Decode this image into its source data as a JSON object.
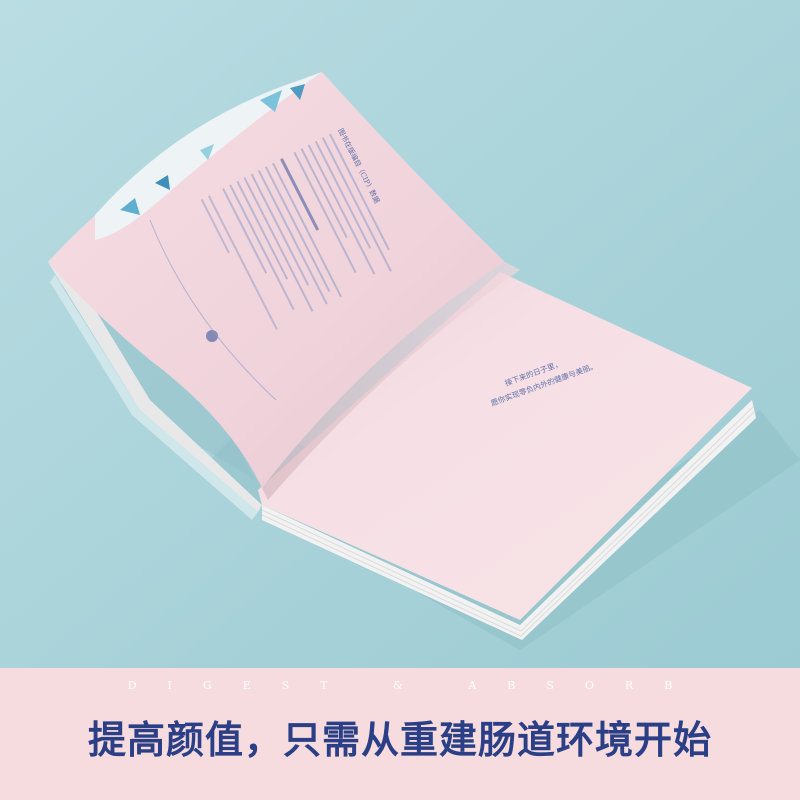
{
  "book": {
    "cip_title": "图书在版编目（CIP）数据",
    "right_line_1": "接下来的日子里，",
    "right_line_2": "愿你实现零负内外的健康与美丽。"
  },
  "banner": {
    "tagline": "DIGEST & ABSORB",
    "headline": "提高颜值，只需从重建肠道环境开始"
  },
  "colors": {
    "background": "#aad3da",
    "page_pink": "#f7dfe4",
    "banner_pink": "#f7dcdf",
    "headline_blue": "#2b3f86"
  }
}
